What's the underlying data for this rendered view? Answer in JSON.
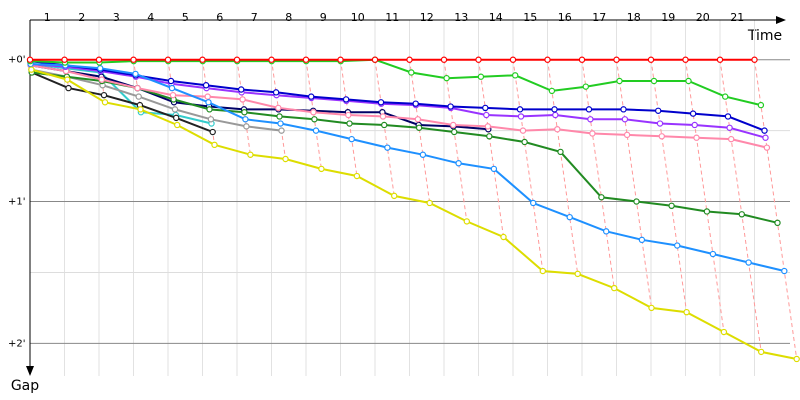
{
  "chart_data": {
    "type": "line",
    "x_title": "Time",
    "y_title": "Gap",
    "x": [
      0,
      1,
      2,
      3,
      4,
      5,
      6,
      7,
      8,
      9,
      10,
      11,
      12,
      13,
      14,
      15,
      16,
      17,
      18,
      19,
      20,
      21
    ],
    "xlim": [
      0,
      21
    ],
    "xticks": [
      1,
      2,
      3,
      4,
      5,
      6,
      7,
      8,
      9,
      10,
      11,
      12,
      13,
      14,
      15,
      16,
      17,
      18,
      19,
      20,
      21
    ],
    "ylim": [
      -0.28,
      2.23
    ],
    "yticks": [
      {
        "value": 0,
        "label": "+0'"
      },
      {
        "value": 1,
        "label": "+1'"
      },
      {
        "value": 2,
        "label": "+2'"
      }
    ],
    "minor_yticks": [
      0.5,
      1.5
    ],
    "y_inverted": true,
    "grid": true,
    "series": [
      {
        "color": "#ff0000",
        "values": [
          0,
          0,
          0,
          0,
          0,
          0,
          0,
          0,
          0,
          0,
          0,
          0,
          0,
          0,
          0,
          0,
          0,
          0,
          0,
          0,
          0,
          0
        ]
      },
      {
        "color": "#22cc22",
        "values": [
          0.01,
          0.02,
          0.02,
          0.01,
          0.01,
          0.01,
          0.01,
          0.01,
          0.01,
          0.01,
          0.0,
          0.09,
          0.13,
          0.12,
          0.11,
          0.22,
          0.19,
          0.15,
          0.15,
          0.15,
          0.26,
          0.32
        ]
      },
      {
        "color": "#dddd00",
        "values": [
          0.07,
          0.14,
          0.3,
          0.35,
          0.46,
          0.6,
          0.67,
          0.7,
          0.77,
          0.82,
          0.96,
          1.01,
          1.14,
          1.25,
          1.49,
          1.51,
          1.61,
          1.75,
          1.78,
          1.92,
          2.06,
          2.11
        ]
      },
      {
        "color": "#1e90ff",
        "values": [
          0.03,
          0.04,
          0.06,
          0.1,
          0.2,
          0.3,
          0.42,
          0.45,
          0.5,
          0.56,
          0.62,
          0.67,
          0.73,
          0.77,
          1.01,
          1.11,
          1.21,
          1.27,
          1.31,
          1.37,
          1.43,
          1.49
        ]
      },
      {
        "color": "#0000cc",
        "values": [
          0.01,
          0.04,
          0.07,
          0.11,
          0.15,
          0.18,
          0.21,
          0.23,
          0.26,
          0.28,
          0.3,
          0.31,
          0.33,
          0.34,
          0.35,
          0.35,
          0.35,
          0.35,
          0.36,
          0.38,
          0.4,
          0.5
        ]
      },
      {
        "color": "#9933ff",
        "values": [
          0.03,
          0.05,
          0.08,
          0.12,
          0.17,
          0.2,
          0.23,
          0.25,
          0.27,
          0.29,
          0.31,
          0.32,
          0.34,
          0.39,
          0.4,
          0.39,
          0.42,
          0.42,
          0.45,
          0.46,
          0.48,
          0.55
        ]
      },
      {
        "color": "#ff88aa",
        "values": [
          0.04,
          0.08,
          0.14,
          0.2,
          0.25,
          0.26,
          0.28,
          0.34,
          0.37,
          0.39,
          0.4,
          0.42,
          0.46,
          0.47,
          0.5,
          0.49,
          0.52,
          0.53,
          0.54,
          0.55,
          0.56,
          0.62
        ]
      },
      {
        "color": "#228b22",
        "values": [
          0.09,
          0.12,
          0.15,
          0.2,
          0.28,
          0.35,
          0.37,
          0.4,
          0.42,
          0.45,
          0.46,
          0.48,
          0.51,
          0.54,
          0.58,
          0.65,
          0.97,
          1.0,
          1.03,
          1.07,
          1.09,
          1.15
        ]
      },
      {
        "color": "#000066",
        "values": [
          0.04,
          0.08,
          0.12,
          0.2,
          0.3,
          0.33,
          0.35,
          0.35,
          0.36,
          0.37,
          0.37,
          0.46,
          0.47,
          0.49,
          null,
          null,
          null,
          null,
          null,
          null,
          null,
          null
        ]
      },
      {
        "color": "#222222",
        "values": [
          0.09,
          0.2,
          0.25,
          0.32,
          0.41,
          0.51,
          null,
          null,
          null,
          null,
          null,
          null,
          null,
          null,
          null,
          null,
          null,
          null,
          null,
          null,
          null,
          null
        ]
      },
      {
        "color": "#999999",
        "values": [
          0.07,
          0.12,
          0.18,
          0.26,
          0.35,
          0.42,
          0.47,
          0.5,
          null,
          null,
          null,
          null,
          null,
          null,
          null,
          null,
          null,
          null,
          null,
          null,
          null,
          null
        ]
      },
      {
        "color": "#33cccc",
        "values": [
          0.03,
          0.06,
          0.09,
          0.37,
          0.39,
          0.45,
          null,
          null,
          null,
          null,
          null,
          null,
          null,
          null,
          null,
          null,
          null,
          null,
          null,
          null,
          null,
          null
        ]
      }
    ]
  }
}
